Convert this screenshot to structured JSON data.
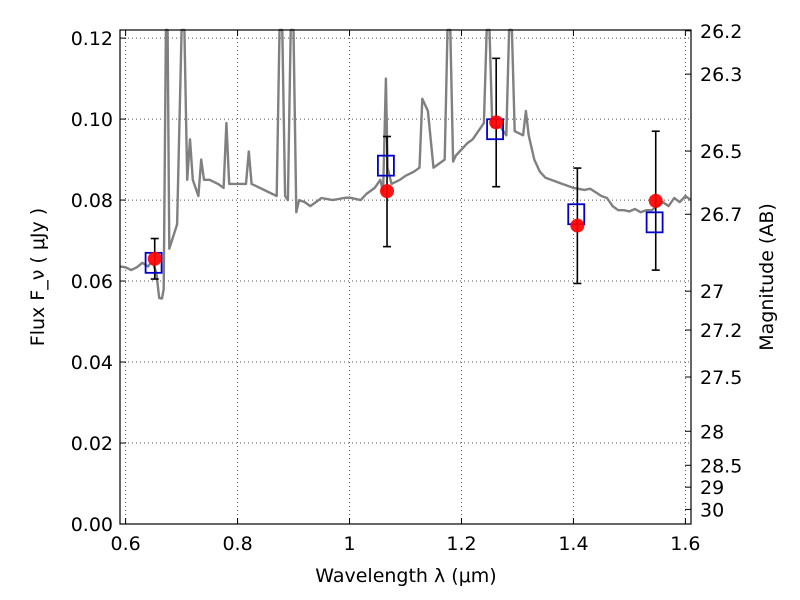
{
  "chart_data": {
    "type": "scatter",
    "xlabel": "Wavelength  λ (μm)",
    "ylabel": "Flux  F_ν  ( μJy )",
    "ylabel_right": "Magnitude (AB)",
    "xlim": [
      0.59,
      1.61
    ],
    "ylim": [
      0.0,
      0.122
    ],
    "x_ticks": [
      {
        "value": 0.6,
        "label": "0.6"
      },
      {
        "value": 0.8,
        "label": "0.8"
      },
      {
        "value": 1.0,
        "label": "1"
      },
      {
        "value": 1.2,
        "label": "1.2"
      },
      {
        "value": 1.4,
        "label": "1.4"
      },
      {
        "value": 1.6,
        "label": "1.6"
      }
    ],
    "y_ticks": [
      {
        "value": 0.0,
        "label": "0.00"
      },
      {
        "value": 0.02,
        "label": "0.02"
      },
      {
        "value": 0.04,
        "label": "0.04"
      },
      {
        "value": 0.06,
        "label": "0.06"
      },
      {
        "value": 0.08,
        "label": "0.08"
      },
      {
        "value": 0.1,
        "label": "0.10"
      },
      {
        "value": 0.12,
        "label": "0.12"
      }
    ],
    "mag_ticks": [
      {
        "flux": 0.1218,
        "label": "26.2"
      },
      {
        "flux": 0.1111,
        "label": "26.3"
      },
      {
        "flux": 0.0921,
        "label": "26.5"
      },
      {
        "flux": 0.0765,
        "label": "26.7"
      },
      {
        "flux": 0.0575,
        "label": "27"
      },
      {
        "flux": 0.0479,
        "label": "27.2"
      },
      {
        "flux": 0.0363,
        "label": "27.5"
      },
      {
        "flux": 0.0229,
        "label": "28"
      },
      {
        "flux": 0.0145,
        "label": "28.5"
      },
      {
        "flux": 0.0091,
        "label": "29"
      },
      {
        "flux": 0.0036,
        "label": "30"
      }
    ],
    "grid": true,
    "series": [
      {
        "kind": "line",
        "color": "#808080",
        "points": [
          [
            0.59,
            0.0636
          ],
          [
            0.6,
            0.0634
          ],
          [
            0.61,
            0.0627
          ],
          [
            0.62,
            0.0634
          ],
          [
            0.63,
            0.0645
          ],
          [
            0.64,
            0.0636
          ],
          [
            0.645,
            0.0645
          ],
          [
            0.65,
            0.064
          ],
          [
            0.655,
            0.062
          ],
          [
            0.66,
            0.0558
          ],
          [
            0.665,
            0.0557
          ],
          [
            0.668,
            0.058
          ],
          [
            0.672,
            0.122
          ],
          [
            0.675,
            0.122
          ],
          [
            0.678,
            0.068
          ],
          [
            0.685,
            0.071
          ],
          [
            0.692,
            0.074
          ],
          [
            0.7,
            0.122
          ],
          [
            0.705,
            0.122
          ],
          [
            0.71,
            0.085
          ],
          [
            0.715,
            0.095
          ],
          [
            0.72,
            0.085
          ],
          [
            0.73,
            0.081
          ],
          [
            0.735,
            0.09
          ],
          [
            0.74,
            0.085
          ],
          [
            0.75,
            0.085
          ],
          [
            0.765,
            0.084
          ],
          [
            0.775,
            0.083
          ],
          [
            0.78,
            0.099
          ],
          [
            0.785,
            0.084
          ],
          [
            0.8,
            0.084
          ],
          [
            0.815,
            0.084
          ],
          [
            0.82,
            0.092
          ],
          [
            0.825,
            0.084
          ],
          [
            0.84,
            0.083
          ],
          [
            0.855,
            0.082
          ],
          [
            0.87,
            0.081
          ],
          [
            0.875,
            0.122
          ],
          [
            0.88,
            0.122
          ],
          [
            0.885,
            0.081
          ],
          [
            0.89,
            0.08
          ],
          [
            0.895,
            0.122
          ],
          [
            0.9,
            0.122
          ],
          [
            0.905,
            0.077
          ],
          [
            0.91,
            0.08
          ],
          [
            0.92,
            0.0795
          ],
          [
            0.93,
            0.0785
          ],
          [
            0.94,
            0.0795
          ],
          [
            0.95,
            0.0805
          ],
          [
            0.97,
            0.08
          ],
          [
            0.99,
            0.0805
          ],
          [
            1.0,
            0.0806
          ],
          [
            1.02,
            0.08
          ],
          [
            1.03,
            0.0815
          ],
          [
            1.045,
            0.083
          ],
          [
            1.055,
            0.085
          ],
          [
            1.06,
            0.082
          ],
          [
            1.065,
            0.11
          ],
          [
            1.068,
            0.088
          ],
          [
            1.075,
            0.084
          ],
          [
            1.09,
            0.085
          ],
          [
            1.1,
            0.086
          ],
          [
            1.115,
            0.087
          ],
          [
            1.125,
            0.088
          ],
          [
            1.13,
            0.105
          ],
          [
            1.14,
            0.102
          ],
          [
            1.15,
            0.088
          ],
          [
            1.16,
            0.089
          ],
          [
            1.17,
            0.09
          ],
          [
            1.175,
            0.122
          ],
          [
            1.18,
            0.122
          ],
          [
            1.185,
            0.0895
          ],
          [
            1.19,
            0.091
          ],
          [
            1.2,
            0.0925
          ],
          [
            1.21,
            0.094
          ],
          [
            1.22,
            0.095
          ],
          [
            1.23,
            0.097
          ],
          [
            1.24,
            0.099
          ],
          [
            1.245,
            0.122
          ],
          [
            1.25,
            0.122
          ],
          [
            1.255,
            0.098
          ],
          [
            1.27,
            0.098
          ],
          [
            1.28,
            0.096
          ],
          [
            1.285,
            0.122
          ],
          [
            1.29,
            0.122
          ],
          [
            1.295,
            0.097
          ],
          [
            1.31,
            0.096
          ],
          [
            1.315,
            0.102
          ],
          [
            1.32,
            0.096
          ],
          [
            1.33,
            0.09
          ],
          [
            1.34,
            0.087
          ],
          [
            1.35,
            0.0855
          ],
          [
            1.36,
            0.085
          ],
          [
            1.38,
            0.084
          ],
          [
            1.4,
            0.083
          ],
          [
            1.42,
            0.0825
          ],
          [
            1.43,
            0.0828
          ],
          [
            1.45,
            0.081
          ],
          [
            1.46,
            0.0805
          ],
          [
            1.47,
            0.0785
          ],
          [
            1.48,
            0.0775
          ],
          [
            1.49,
            0.0775
          ],
          [
            1.5,
            0.0772
          ],
          [
            1.51,
            0.0778
          ],
          [
            1.52,
            0.077
          ],
          [
            1.53,
            0.0775
          ],
          [
            1.54,
            0.0775
          ],
          [
            1.55,
            0.0785
          ],
          [
            1.56,
            0.0795
          ],
          [
            1.57,
            0.0785
          ],
          [
            1.58,
            0.0805
          ],
          [
            1.59,
            0.0795
          ],
          [
            1.6,
            0.081
          ],
          [
            1.61,
            0.08
          ]
        ]
      },
      {
        "kind": "squares",
        "color": "#0000cc",
        "points": [
          [
            0.65,
            0.0645
          ],
          [
            1.065,
            0.0885
          ],
          [
            1.26,
            0.0975
          ],
          [
            1.405,
            0.0765
          ],
          [
            1.545,
            0.0745
          ]
        ]
      },
      {
        "kind": "circles_errorbars",
        "color": "#ff0000",
        "points": [
          {
            "x": 0.652,
            "y": 0.0655,
            "lo": 0.0605,
            "hi": 0.0705
          },
          {
            "x": 1.067,
            "y": 0.0822,
            "lo": 0.0685,
            "hi": 0.0957
          },
          {
            "x": 1.262,
            "y": 0.0992,
            "lo": 0.0833,
            "hi": 0.115
          },
          {
            "x": 1.407,
            "y": 0.0737,
            "lo": 0.0594,
            "hi": 0.0879
          },
          {
            "x": 1.547,
            "y": 0.0798,
            "lo": 0.0627,
            "hi": 0.097
          }
        ]
      }
    ]
  }
}
